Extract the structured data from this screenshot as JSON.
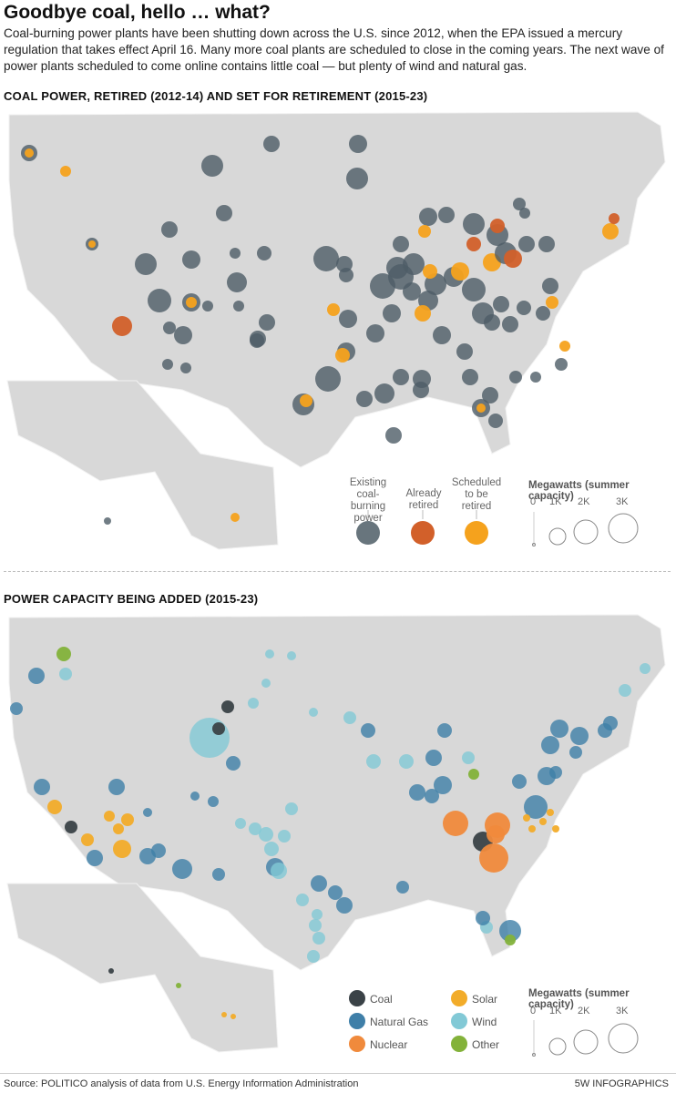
{
  "header": {
    "title": "Goodbye coal, hello … what?",
    "intro": "Coal-burning power plants have been shutting down across the U.S. since 2012, when the EPA issued a mercury regulation that takes effect April 16. Many more coal plants are scheduled to close in the coming years. The next wave of power plants scheduled to come online contains little coal — but plenty of wind and natural gas."
  },
  "map1": {
    "title": "COAL POWER, RETIRED (2012-14) AND SET FOR RETIREMENT (2015-23)",
    "legend": {
      "existing": "Existing coal-burning power",
      "retired": "Already retired",
      "scheduled": "Scheduled to be retired",
      "size_title": "Megawatts (summer capacity)",
      "ticks": [
        "0",
        "1K",
        "2K",
        "3K"
      ]
    },
    "colors": {
      "existing": "#4e5d66",
      "retired": "#d2602a",
      "scheduled": "#f5a21d"
    }
  },
  "map2": {
    "title": "POWER CAPACITY BEING ADDED (2015-23)",
    "legend": {
      "coal": "Coal",
      "natural_gas": "Natural Gas",
      "nuclear": "Nuclear",
      "solar": "Solar",
      "wind": "Wind",
      "other": "Other",
      "size_title": "Megawatts (summer capacity)",
      "ticks": [
        "0",
        "1K",
        "2K",
        "3K"
      ]
    },
    "colors": {
      "coal": "#3a4247",
      "natural_gas": "#3f7fa8",
      "nuclear": "#f08a3c",
      "solar": "#f2ac2a",
      "wind": "#82c9d6",
      "other": "#83b23a"
    }
  },
  "footer": {
    "source": "Source: POLITICO analysis of data from U.S. Energy Information Administration",
    "credit": "5W INFOGRAPHICS"
  }
}
